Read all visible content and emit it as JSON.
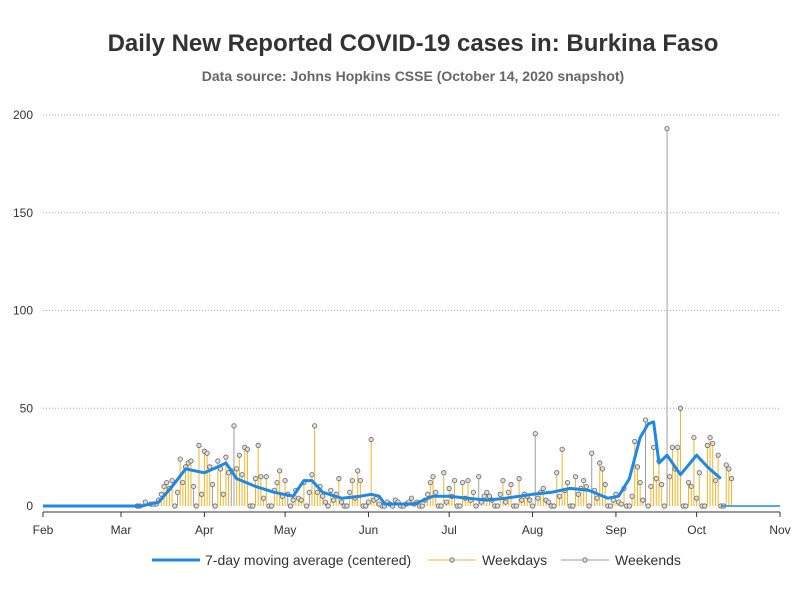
{
  "chart_data": {
    "type": "line",
    "title": "Daily New Reported COVID-19 cases in: Burkina Faso",
    "subtitle": "Data source: Johns Hopkins CSSE (October 14, 2020 snapshot)",
    "x_axis": {
      "range": [
        "2020-02-01",
        "2020-11-01"
      ],
      "ticks": [
        "Feb",
        "Mar",
        "Apr",
        "May",
        "Jun",
        "Jul",
        "Aug",
        "Sep",
        "Oct",
        "Nov"
      ]
    },
    "y_axis": {
      "range": [
        0,
        200
      ],
      "ticks": [
        0,
        50,
        100,
        150,
        200
      ],
      "grid": true
    },
    "legend": {
      "placement": "bottom"
    },
    "colors": {
      "moving_average": "#1e88e5",
      "weekdays": "#f0b429",
      "weekends": "#9e9e9e"
    },
    "series": [
      {
        "name": "7-day moving average (centered)",
        "style": "line",
        "points": [
          [
            "2020-03-09",
            0.1
          ],
          [
            "2020-03-15",
            2
          ],
          [
            "2020-03-20",
            10
          ],
          [
            "2020-03-25",
            19
          ],
          [
            "2020-04-01",
            17
          ],
          [
            "2020-04-06",
            20
          ],
          [
            "2020-04-09",
            22
          ],
          [
            "2020-04-13",
            14
          ],
          [
            "2020-04-20",
            10
          ],
          [
            "2020-04-27",
            7
          ],
          [
            "2020-05-04",
            5
          ],
          [
            "2020-05-08",
            13
          ],
          [
            "2020-05-11",
            13
          ],
          [
            "2020-05-15",
            7
          ],
          [
            "2020-05-22",
            4
          ],
          [
            "2020-05-29",
            5
          ],
          [
            "2020-06-02",
            6
          ],
          [
            "2020-06-05",
            5
          ],
          [
            "2020-06-07",
            1
          ],
          [
            "2020-06-18",
            1
          ],
          [
            "2020-06-25",
            5
          ],
          [
            "2020-07-01",
            5
          ],
          [
            "2020-07-08",
            4
          ],
          [
            "2020-07-15",
            3
          ],
          [
            "2020-07-22",
            4
          ],
          [
            "2020-08-01",
            6
          ],
          [
            "2020-08-08",
            7
          ],
          [
            "2020-08-15",
            9
          ],
          [
            "2020-08-22",
            8
          ],
          [
            "2020-08-29",
            4
          ],
          [
            "2020-09-02",
            5
          ],
          [
            "2020-09-06",
            14
          ],
          [
            "2020-09-10",
            35
          ],
          [
            "2020-09-13",
            42
          ],
          [
            "2020-09-15",
            43
          ],
          [
            "2020-09-17",
            22
          ],
          [
            "2020-09-20",
            26
          ],
          [
            "2020-09-25",
            16
          ],
          [
            "2020-10-01",
            26
          ],
          [
            "2020-10-05",
            20
          ],
          [
            "2020-10-10",
            14
          ]
        ]
      },
      {
        "name": "Weekdays",
        "style": "lollipop",
        "points": [
          [
            "2020-03-10",
            2
          ],
          [
            "2020-03-12",
            1
          ],
          [
            "2020-03-13",
            1
          ],
          [
            "2020-03-16",
            6
          ],
          [
            "2020-03-17",
            10
          ],
          [
            "2020-03-18",
            12
          ],
          [
            "2020-03-19",
            9
          ],
          [
            "2020-03-20",
            13
          ],
          [
            "2020-03-23",
            24
          ],
          [
            "2020-03-24",
            12
          ],
          [
            "2020-03-25",
            20
          ],
          [
            "2020-03-26",
            22
          ],
          [
            "2020-03-27",
            23
          ],
          [
            "2020-03-30",
            31
          ],
          [
            "2020-03-31",
            6
          ],
          [
            "2020-04-01",
            28
          ],
          [
            "2020-04-02",
            27
          ],
          [
            "2020-04-03",
            20
          ],
          [
            "2020-04-06",
            23
          ],
          [
            "2020-04-07",
            19
          ],
          [
            "2020-04-08",
            6
          ],
          [
            "2020-04-09",
            25
          ],
          [
            "2020-04-10",
            17
          ],
          [
            "2020-04-13",
            19
          ],
          [
            "2020-04-14",
            26
          ],
          [
            "2020-04-15",
            16
          ],
          [
            "2020-04-16",
            30
          ],
          [
            "2020-04-17",
            29
          ],
          [
            "2020-04-20",
            14
          ],
          [
            "2020-04-21",
            31
          ],
          [
            "2020-04-22",
            15
          ],
          [
            "2020-04-23",
            4
          ],
          [
            "2020-04-24",
            15
          ],
          [
            "2020-04-27",
            8
          ],
          [
            "2020-04-28",
            12
          ],
          [
            "2020-04-29",
            18
          ],
          [
            "2020-04-30",
            5
          ],
          [
            "2020-05-01",
            13
          ],
          [
            "2020-05-04",
            3
          ],
          [
            "2020-05-05",
            8
          ],
          [
            "2020-05-06",
            4
          ],
          [
            "2020-05-07",
            3
          ],
          [
            "2020-05-08",
            12
          ],
          [
            "2020-05-11",
            16
          ],
          [
            "2020-05-12",
            41
          ],
          [
            "2020-05-13",
            7
          ],
          [
            "2020-05-14",
            10
          ],
          [
            "2020-05-15",
            5
          ],
          [
            "2020-05-18",
            8
          ],
          [
            "2020-05-19",
            3
          ],
          [
            "2020-05-20",
            6
          ],
          [
            "2020-05-21",
            14
          ],
          [
            "2020-05-22",
            2
          ],
          [
            "2020-05-25",
            7
          ],
          [
            "2020-05-26",
            13
          ],
          [
            "2020-05-27",
            4
          ],
          [
            "2020-05-28",
            18
          ],
          [
            "2020-05-29",
            13
          ],
          [
            "2020-06-01",
            2
          ],
          [
            "2020-06-02",
            34
          ],
          [
            "2020-06-03",
            3
          ],
          [
            "2020-06-04",
            4
          ],
          [
            "2020-06-05",
            1
          ],
          [
            "2020-06-08",
            2
          ],
          [
            "2020-06-09",
            1
          ],
          [
            "2020-06-10",
            0
          ],
          [
            "2020-06-11",
            3
          ],
          [
            "2020-06-12",
            2
          ],
          [
            "2020-06-15",
            1
          ],
          [
            "2020-06-16",
            2
          ],
          [
            "2020-06-17",
            4
          ],
          [
            "2020-06-18",
            1
          ],
          [
            "2020-06-19",
            2
          ],
          [
            "2020-06-22",
            3
          ],
          [
            "2020-06-23",
            6
          ],
          [
            "2020-06-24",
            12
          ],
          [
            "2020-06-25",
            15
          ],
          [
            "2020-06-26",
            7
          ],
          [
            "2020-06-29",
            17
          ],
          [
            "2020-06-30",
            2
          ],
          [
            "2020-07-01",
            9
          ],
          [
            "2020-07-02",
            5
          ],
          [
            "2020-07-03",
            13
          ],
          [
            "2020-07-06",
            12
          ],
          [
            "2020-07-07",
            4
          ],
          [
            "2020-07-08",
            13
          ],
          [
            "2020-07-09",
            3
          ],
          [
            "2020-07-10",
            7
          ],
          [
            "2020-07-13",
            2
          ],
          [
            "2020-07-14",
            5
          ],
          [
            "2020-07-15",
            7
          ],
          [
            "2020-07-16",
            5
          ],
          [
            "2020-07-17",
            3
          ],
          [
            "2020-07-20",
            6
          ],
          [
            "2020-07-21",
            13
          ],
          [
            "2020-07-22",
            2
          ],
          [
            "2020-07-23",
            7
          ],
          [
            "2020-07-24",
            11
          ],
          [
            "2020-07-27",
            14
          ],
          [
            "2020-07-28",
            3
          ],
          [
            "2020-07-29",
            6
          ],
          [
            "2020-07-30",
            5
          ],
          [
            "2020-07-31",
            3
          ],
          [
            "2020-08-03",
            4
          ],
          [
            "2020-08-04",
            7
          ],
          [
            "2020-08-05",
            9
          ],
          [
            "2020-08-06",
            3
          ],
          [
            "2020-08-07",
            2
          ],
          [
            "2020-08-10",
            17
          ],
          [
            "2020-08-11",
            5
          ],
          [
            "2020-08-12",
            29
          ],
          [
            "2020-08-13",
            8
          ],
          [
            "2020-08-14",
            12
          ],
          [
            "2020-08-17",
            15
          ],
          [
            "2020-08-18",
            6
          ],
          [
            "2020-08-19",
            9
          ],
          [
            "2020-08-20",
            13
          ],
          [
            "2020-08-21",
            10
          ],
          [
            "2020-08-24",
            8
          ],
          [
            "2020-08-25",
            4
          ],
          [
            "2020-08-26",
            22
          ],
          [
            "2020-08-27",
            19
          ],
          [
            "2020-08-28",
            11
          ],
          [
            "2020-08-31",
            3
          ],
          [
            "2020-09-01",
            6
          ],
          [
            "2020-09-02",
            2
          ],
          [
            "2020-09-03",
            1
          ],
          [
            "2020-09-04",
            9
          ],
          [
            "2020-09-07",
            5
          ],
          [
            "2020-09-08",
            33
          ],
          [
            "2020-09-09",
            20
          ],
          [
            "2020-09-10",
            12
          ],
          [
            "2020-09-11",
            3
          ],
          [
            "2020-09-14",
            10
          ],
          [
            "2020-09-15",
            30
          ],
          [
            "2020-09-16",
            14
          ],
          [
            "2020-09-17",
            23
          ],
          [
            "2020-09-18",
            11
          ],
          [
            "2020-09-21",
            15
          ],
          [
            "2020-09-22",
            30
          ],
          [
            "2020-09-23",
            19
          ],
          [
            "2020-09-24",
            30
          ],
          [
            "2020-09-25",
            50
          ],
          [
            "2020-09-28",
            12
          ],
          [
            "2020-09-29",
            10
          ],
          [
            "2020-09-30",
            35
          ],
          [
            "2020-10-01",
            4
          ],
          [
            "2020-10-02",
            17
          ],
          [
            "2020-10-05",
            31
          ],
          [
            "2020-10-06",
            35
          ],
          [
            "2020-10-07",
            32
          ],
          [
            "2020-10-08",
            13
          ],
          [
            "2020-10-09",
            26
          ],
          [
            "2020-10-12",
            21
          ],
          [
            "2020-10-13",
            19
          ],
          [
            "2020-10-14",
            14
          ]
        ]
      },
      {
        "name": "Weekends",
        "style": "lollipop",
        "points": [
          [
            "2020-03-07",
            0
          ],
          [
            "2020-03-08",
            0
          ],
          [
            "2020-03-14",
            1
          ],
          [
            "2020-03-15",
            3
          ],
          [
            "2020-03-21",
            0
          ],
          [
            "2020-03-22",
            7
          ],
          [
            "2020-03-28",
            10
          ],
          [
            "2020-03-29",
            0
          ],
          [
            "2020-04-04",
            11
          ],
          [
            "2020-04-05",
            0
          ],
          [
            "2020-04-11",
            18
          ],
          [
            "2020-04-12",
            41
          ],
          [
            "2020-04-18",
            0
          ],
          [
            "2020-04-19",
            0
          ],
          [
            "2020-04-25",
            0
          ],
          [
            "2020-04-26",
            0
          ],
          [
            "2020-05-02",
            6
          ],
          [
            "2020-05-03",
            0
          ],
          [
            "2020-05-09",
            0
          ],
          [
            "2020-05-10",
            7
          ],
          [
            "2020-05-16",
            2
          ],
          [
            "2020-05-17",
            0
          ],
          [
            "2020-05-23",
            0
          ],
          [
            "2020-05-24",
            0
          ],
          [
            "2020-05-30",
            0
          ],
          [
            "2020-05-31",
            0
          ],
          [
            "2020-06-06",
            0
          ],
          [
            "2020-06-07",
            0
          ],
          [
            "2020-06-13",
            0
          ],
          [
            "2020-06-14",
            0
          ],
          [
            "2020-06-20",
            0
          ],
          [
            "2020-06-21",
            0
          ],
          [
            "2020-06-27",
            0
          ],
          [
            "2020-06-28",
            0
          ],
          [
            "2020-07-04",
            0
          ],
          [
            "2020-07-05",
            0
          ],
          [
            "2020-07-11",
            0
          ],
          [
            "2020-07-12",
            15
          ],
          [
            "2020-07-18",
            0
          ],
          [
            "2020-07-19",
            0
          ],
          [
            "2020-07-25",
            0
          ],
          [
            "2020-07-26",
            0
          ],
          [
            "2020-08-01",
            0
          ],
          [
            "2020-08-02",
            37
          ],
          [
            "2020-08-08",
            0
          ],
          [
            "2020-08-09",
            0
          ],
          [
            "2020-08-15",
            0
          ],
          [
            "2020-08-16",
            0
          ],
          [
            "2020-08-22",
            0
          ],
          [
            "2020-08-23",
            27
          ],
          [
            "2020-08-29",
            0
          ],
          [
            "2020-08-30",
            0
          ],
          [
            "2020-09-05",
            0
          ],
          [
            "2020-09-06",
            0
          ],
          [
            "2020-09-12",
            44
          ],
          [
            "2020-09-13",
            0
          ],
          [
            "2020-09-19",
            0
          ],
          [
            "2020-09-20",
            193
          ],
          [
            "2020-09-26",
            0
          ],
          [
            "2020-09-27",
            0
          ],
          [
            "2020-10-03",
            0
          ],
          [
            "2020-10-04",
            0
          ],
          [
            "2020-10-10",
            0
          ],
          [
            "2020-10-11",
            0
          ]
        ]
      }
    ]
  }
}
